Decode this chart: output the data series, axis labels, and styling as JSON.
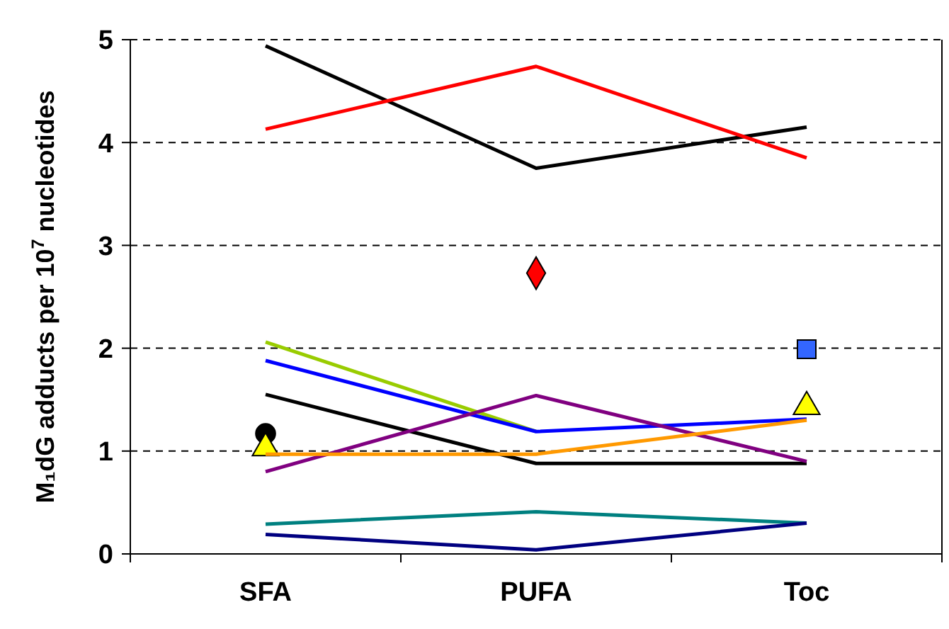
{
  "chart_data": {
    "type": "line",
    "ylabel": "M₁dG adducts per 10$^{7}$ nucleotides",
    "categories": [
      "SFA",
      "PUFA",
      "Toc"
    ],
    "ylim": [
      0,
      5
    ],
    "yticks": [
      0,
      1,
      2,
      3,
      4,
      5
    ],
    "grid": "y",
    "series": [
      {
        "color": "#000000",
        "values": [
          4.94,
          3.75,
          4.15
        ]
      },
      {
        "color": "#ff0000",
        "values": [
          4.13,
          4.74,
          3.85
        ]
      },
      {
        "color": "#99cc00",
        "values": [
          2.06,
          1.19,
          null
        ]
      },
      {
        "color": "#0000ff",
        "values": [
          1.88,
          1.19,
          1.31
        ]
      },
      {
        "color": "#000000",
        "values": [
          1.55,
          0.88,
          0.88
        ]
      },
      {
        "color": "#800080",
        "values": [
          0.8,
          1.54,
          0.9
        ]
      },
      {
        "color": "#ff9900",
        "values": [
          0.97,
          0.97,
          1.3
        ]
      },
      {
        "color": "#008080",
        "values": [
          0.29,
          0.41,
          0.3
        ]
      },
      {
        "color": "#000080",
        "values": [
          0.19,
          0.04,
          0.3
        ]
      },
      {
        "type": "scatter",
        "marker": "circle",
        "color": "#000000",
        "values": [
          1.17,
          null,
          null
        ]
      },
      {
        "type": "scatter",
        "marker": "triangle",
        "color": "#ffff00",
        "values": [
          1.03,
          null,
          1.43
        ]
      },
      {
        "type": "scatter",
        "marker": "diamond",
        "color": "#ff0000",
        "values": [
          null,
          2.73,
          null
        ]
      },
      {
        "type": "scatter",
        "marker": "square",
        "color": "#3366ff",
        "values": [
          null,
          null,
          1.99
        ]
      }
    ]
  }
}
